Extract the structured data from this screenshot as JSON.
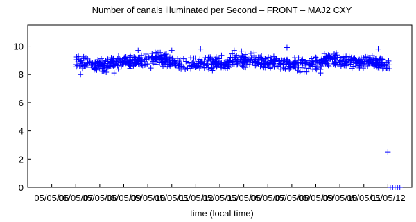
{
  "chart_data": {
    "type": "scatter",
    "title": "Number of canals illuminated per Second – FRONT – MAJ2 CXY",
    "xlabel": "time (local time)",
    "ylabel": "",
    "ylim": [
      0,
      11.5
    ],
    "yticks": [
      0,
      2,
      4,
      6,
      8,
      10
    ],
    "xlim": [
      0,
      8
    ],
    "xtick_values": [
      0.5,
      1,
      1.5,
      2,
      2.5,
      3,
      3.5,
      4,
      4.5,
      5,
      5.5,
      6,
      6.5,
      7,
      7.5
    ],
    "xtick_labels": [
      "05/05/06",
      "05/05/07",
      "05/05/08",
      "05/05/09",
      "05/05/10",
      "05/05/11",
      "05/05/12",
      "05/05/13",
      "05/05/06",
      "05/05/07",
      "05/05/08",
      "05/05/09",
      "05/05/10",
      "05/05/11",
      "05/05/12"
    ],
    "grid": false,
    "legend": "none",
    "marker": "plus",
    "series": [
      {
        "color": "#0000ff",
        "band": {
          "x_start": 1.0,
          "x_end": 7.55,
          "y_center": 8.85,
          "y_spread": 0.45
        },
        "outliers": [
          {
            "x": 1.1,
            "y": 8.0
          },
          {
            "x": 1.8,
            "y": 8.1
          },
          {
            "x": 2.3,
            "y": 9.7
          },
          {
            "x": 3.0,
            "y": 9.7
          },
          {
            "x": 3.6,
            "y": 9.8
          },
          {
            "x": 4.3,
            "y": 9.7
          },
          {
            "x": 5.4,
            "y": 9.9
          },
          {
            "x": 6.1,
            "y": 8.1
          },
          {
            "x": 7.3,
            "y": 9.8
          },
          {
            "x": 7.5,
            "y": 2.5
          },
          {
            "x": 7.55,
            "y": 0.0
          },
          {
            "x": 7.6,
            "y": 0.0
          },
          {
            "x": 7.65,
            "y": 0.0
          },
          {
            "x": 7.7,
            "y": 0.0
          },
          {
            "x": 7.75,
            "y": 0.0
          }
        ]
      }
    ]
  }
}
